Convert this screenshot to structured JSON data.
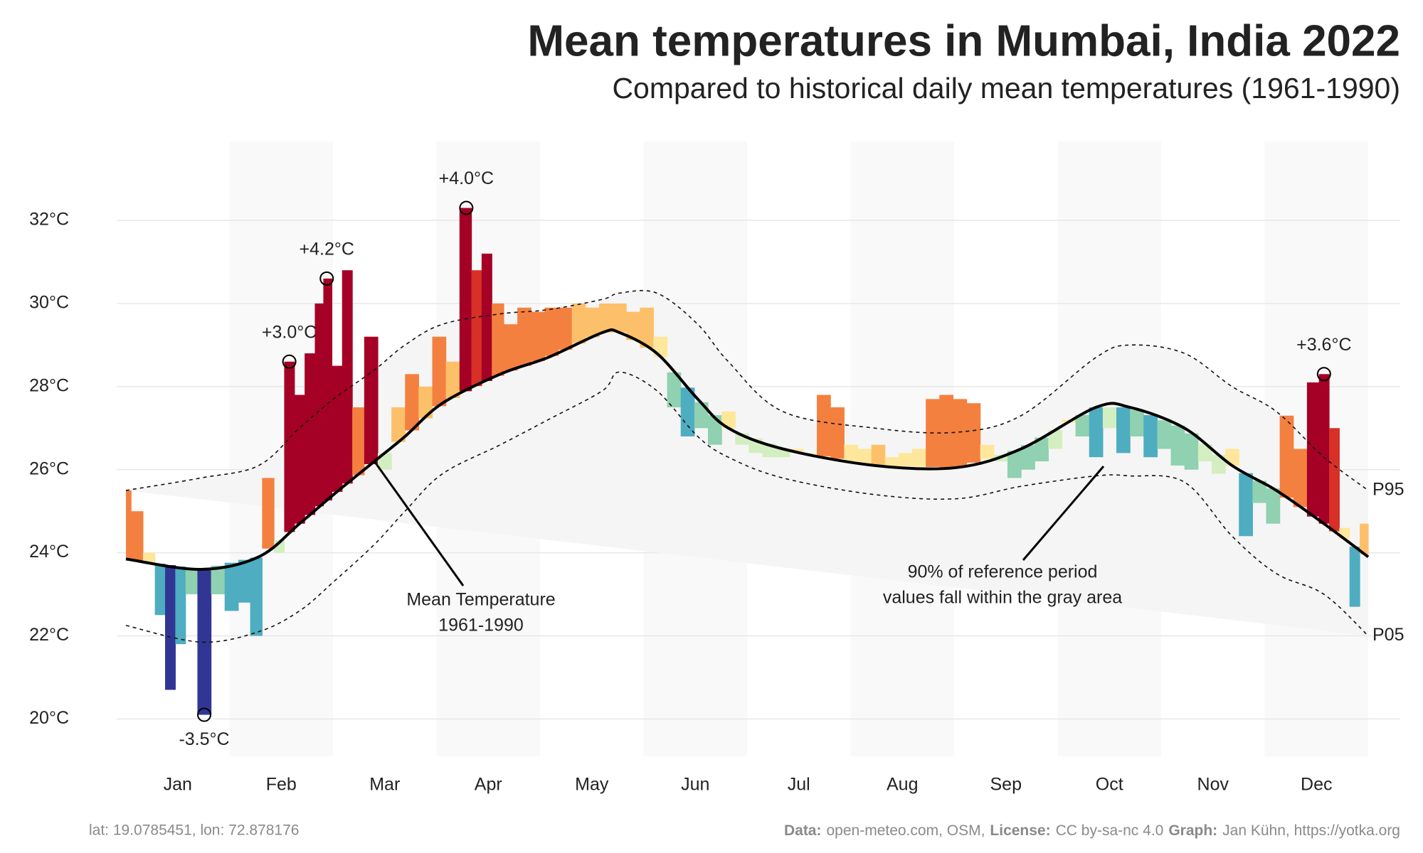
{
  "chart_data": {
    "type": "line",
    "title": "Mean temperatures in Mumbai, India 2022",
    "subtitle": "Compared to historical daily mean temperatures (1961-1990)",
    "xlim": [
      0,
      365
    ],
    "ylim": [
      19.1,
      33.9
    ],
    "yticks": [
      {
        "value": 20,
        "label": "20°C"
      },
      {
        "value": 22,
        "label": "22°C"
      },
      {
        "value": 24,
        "label": "24°C"
      },
      {
        "value": 26,
        "label": "26°C"
      },
      {
        "value": 28,
        "label": "28°C"
      },
      {
        "value": 30,
        "label": "30°C"
      },
      {
        "value": 32,
        "label": "32°C"
      }
    ],
    "grid": true,
    "month_shading": true,
    "categories": [
      "Jan",
      "Feb",
      "Mar",
      "Apr",
      "May",
      "Jun",
      "Jul",
      "Aug",
      "Sep",
      "Oct",
      "Nov",
      "Dec"
    ],
    "reference": {
      "x": [
        0,
        22,
        39,
        51,
        61,
        73,
        82,
        93,
        110,
        124,
        140,
        145,
        156,
        168,
        177,
        193,
        220,
        244,
        263,
        285,
        295,
        311,
        325,
        338,
        352,
        365
      ],
      "mean": [
        23.85,
        23.6,
        23.9,
        24.7,
        25.4,
        26.2,
        26.8,
        27.6,
        28.3,
        28.7,
        29.3,
        29.3,
        28.8,
        27.7,
        27.0,
        26.5,
        26.1,
        26.05,
        26.5,
        27.5,
        27.5,
        27.0,
        26.1,
        25.5,
        24.7,
        23.9
      ],
      "p95": [
        25.5,
        25.8,
        26.1,
        27.0,
        27.7,
        28.4,
        29.0,
        29.5,
        29.75,
        29.85,
        30.1,
        30.25,
        30.25,
        29.5,
        28.6,
        27.4,
        27.0,
        26.9,
        27.3,
        28.7,
        29.0,
        28.8,
        28.0,
        27.4,
        26.3,
        25.5
      ],
      "p05": [
        22.25,
        21.85,
        22.1,
        22.6,
        23.3,
        24.2,
        25.0,
        25.9,
        26.6,
        27.2,
        27.9,
        28.35,
        27.9,
        26.8,
        26.3,
        25.8,
        25.4,
        25.3,
        25.6,
        25.85,
        25.85,
        25.7,
        24.4,
        23.5,
        23.0,
        22.0
      ],
      "p95_label": "P95",
      "p05_label": "P05",
      "band_color": "#f5f5f5"
    },
    "observed": {
      "x": [
        0,
        3,
        7,
        10,
        13,
        16,
        19,
        23,
        27,
        31,
        35,
        38,
        42,
        45,
        48,
        51,
        54,
        57,
        59,
        62,
        65,
        68,
        72,
        76,
        80,
        84,
        88,
        92,
        96,
        100,
        103,
        106,
        109,
        113,
        117,
        121,
        125,
        129,
        133,
        137,
        141,
        145,
        149,
        153,
        157,
        161,
        165,
        169,
        173,
        177,
        181,
        185,
        189,
        193,
        197,
        201,
        205,
        209,
        213,
        217,
        221,
        225,
        229,
        233,
        237,
        241,
        245,
        249,
        253,
        257,
        261,
        265,
        269,
        273,
        277,
        281,
        285,
        289,
        293,
        297,
        301,
        305,
        309,
        313,
        317,
        321,
        325,
        329,
        333,
        337,
        341,
        345,
        349,
        352,
        355,
        358,
        361,
        364
      ],
      "values": [
        25.5,
        25.0,
        24.0,
        22.5,
        20.7,
        21.8,
        23.0,
        20.1,
        23.0,
        22.6,
        22.8,
        22.0,
        25.8,
        24.0,
        28.6,
        27.8,
        28.8,
        30.0,
        30.6,
        28.5,
        30.8,
        27.5,
        29.2,
        26.0,
        27.5,
        28.3,
        28.0,
        29.2,
        28.6,
        32.3,
        30.8,
        31.2,
        30.0,
        29.5,
        29.9,
        29.8,
        29.9,
        29.9,
        30.0,
        29.9,
        30.0,
        30.0,
        29.8,
        29.9,
        29.2,
        27.5,
        26.8,
        27.0,
        26.6,
        27.4,
        26.6,
        26.4,
        26.3,
        26.3,
        26.5,
        26.4,
        27.8,
        27.5,
        26.6,
        26.5,
        26.6,
        26.3,
        26.4,
        26.5,
        27.7,
        27.8,
        27.7,
        27.6,
        26.6,
        26.2,
        25.8,
        26.0,
        26.2,
        26.5,
        27.2,
        26.8,
        26.3,
        27.0,
        26.4,
        26.8,
        26.3,
        26.5,
        26.1,
        26.0,
        26.2,
        25.9,
        26.5,
        24.4,
        25.2,
        24.7,
        27.3,
        26.5,
        28.1,
        28.3,
        27.0,
        24.6,
        22.7,
        24.7
      ]
    },
    "color_scale": {
      "thresholds": [
        -3,
        -2,
        -1,
        -0.5,
        0,
        0.5,
        1,
        2,
        3
      ],
      "colors": [
        "#313695",
        "#3a72b0",
        "#4eadc0",
        "#8fd1b0",
        "#d3eec0",
        "#fee79a",
        "#fdc06a",
        "#f4803f",
        "#d73027",
        "#a50026"
      ]
    },
    "annotations": [
      {
        "x": 23,
        "y": 20.1,
        "label": "-3.5°C",
        "position": "below"
      },
      {
        "x": 48,
        "y": 28.6,
        "label": "+3.0°C",
        "position": "above"
      },
      {
        "x": 59,
        "y": 30.6,
        "label": "+4.2°C",
        "position": "above"
      },
      {
        "x": 100,
        "y": 32.3,
        "label": "+4.0°C",
        "position": "above"
      },
      {
        "x": 352,
        "y": 28.3,
        "label": "+3.6°C",
        "position": "above"
      }
    ],
    "mean_note": [
      "Mean Temperature",
      "1961-1990"
    ],
    "band_note": [
      "90% of reference period",
      "values fall within the gray area"
    ],
    "footer": {
      "left": "lat: 19.0785451, lon: 72.878176",
      "right": [
        "Data:",
        "open-meteo.com, OSM,",
        "License:",
        "CC by-sa-nc 4.0",
        "Graph:",
        "Jan Kühn, https://yotka.org"
      ]
    }
  }
}
